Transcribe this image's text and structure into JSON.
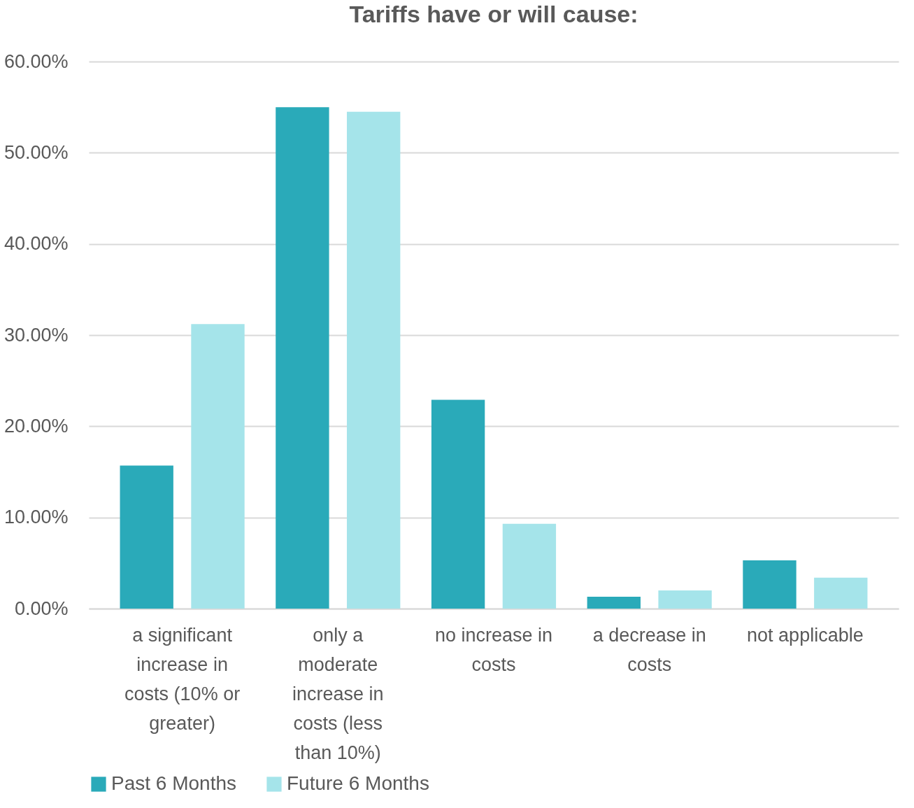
{
  "chart_data": {
    "type": "bar",
    "title": "Tariffs have or will cause:",
    "categories": [
      "a significant increase in costs (10% or greater)",
      "only a moderate increase in costs (less than 10%)",
      "no increase in costs",
      "a decrease in costs",
      "not applicable"
    ],
    "series": [
      {
        "name": "Past 6 Months",
        "color": "#2aaab9",
        "values": [
          15.7,
          55.0,
          22.9,
          1.3,
          5.3
        ]
      },
      {
        "name": "Future 6 Months",
        "color": "#a5e4ea",
        "values": [
          31.2,
          54.5,
          9.3,
          2.0,
          3.4
        ]
      }
    ],
    "ylim": [
      0,
      60
    ],
    "yticks": [
      {
        "value": 0,
        "label": "0.00%"
      },
      {
        "value": 10,
        "label": "10.00%"
      },
      {
        "value": 20,
        "label": "20.00%"
      },
      {
        "value": 30,
        "label": "30.00%"
      },
      {
        "value": 40,
        "label": "40.00%"
      },
      {
        "value": 50,
        "label": "50.00%"
      },
      {
        "value": 60,
        "label": "60.00%"
      }
    ],
    "grid": "y",
    "legend": "bottom"
  }
}
